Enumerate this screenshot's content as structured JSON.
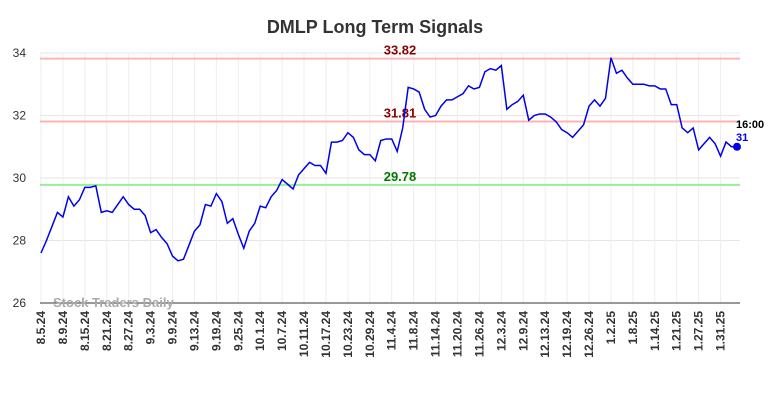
{
  "chart_data": {
    "type": "line",
    "title": "DMLP Long Term Signals",
    "categories": [
      "8.5.24",
      null,
      null,
      null,
      "8.9.24",
      null,
      null,
      null,
      "8.15.24",
      null,
      null,
      null,
      "8.21.24",
      null,
      null,
      null,
      "8.27.24",
      null,
      null,
      null,
      "9.3.24",
      null,
      null,
      null,
      "9.9.24",
      null,
      null,
      null,
      "9.13.24",
      null,
      null,
      null,
      "9.19.24",
      null,
      null,
      null,
      "9.25.24",
      null,
      null,
      null,
      "10.1.24",
      null,
      null,
      null,
      "10.7.24",
      null,
      null,
      null,
      "10.11.24",
      null,
      null,
      null,
      "10.17.24",
      null,
      null,
      null,
      "10.23.24",
      null,
      null,
      null,
      "10.29.24",
      null,
      null,
      null,
      "11.4.24",
      null,
      null,
      null,
      "11.8.24",
      null,
      null,
      null,
      "11.14.24",
      null,
      null,
      null,
      "11.20.24",
      null,
      null,
      null,
      "11.26.24",
      null,
      null,
      null,
      "12.3.24",
      null,
      null,
      null,
      "12.9.24",
      null,
      null,
      null,
      "12.13.24",
      null,
      null,
      null,
      "12.19.24",
      null,
      null,
      null,
      "12.26.24",
      null,
      null,
      null,
      "1.2.25",
      null,
      null,
      null,
      "1.8.25",
      null,
      null,
      null,
      "1.14.25",
      null,
      null,
      null,
      "1.21.25",
      null,
      null,
      null,
      "1.27.25",
      null,
      null,
      null,
      "1.31.25",
      null,
      null,
      null
    ],
    "series": [
      {
        "name": "DMLP",
        "color": "#0000ee",
        "values": [
          27.6,
          28.0,
          28.45,
          28.9,
          28.75,
          29.4,
          29.1,
          29.3,
          29.7,
          29.7,
          29.75,
          28.9,
          28.95,
          28.9,
          29.15,
          29.4,
          29.15,
          29.0,
          29.0,
          28.8,
          28.25,
          28.35,
          28.1,
          27.9,
          27.5,
          27.35,
          27.4,
          27.85,
          28.3,
          28.5,
          29.15,
          29.1,
          29.5,
          29.25,
          28.55,
          28.7,
          28.2,
          27.75,
          28.3,
          28.55,
          29.1,
          29.05,
          29.4,
          29.6,
          29.95,
          29.8,
          29.65,
          30.1,
          30.3,
          30.5,
          30.4,
          30.4,
          30.15,
          31.15,
          31.15,
          31.2,
          31.45,
          31.3,
          30.9,
          30.75,
          30.75,
          30.55,
          31.2,
          31.25,
          31.25,
          30.85,
          31.6,
          32.9,
          32.85,
          32.75,
          32.2,
          31.95,
          32.0,
          32.3,
          32.5,
          32.5,
          32.6,
          32.7,
          32.95,
          32.85,
          32.9,
          33.4,
          33.5,
          33.45,
          33.6,
          32.2,
          32.35,
          32.45,
          32.65,
          31.85,
          32.0,
          32.05,
          32.05,
          31.95,
          31.8,
          31.55,
          31.45,
          31.3,
          31.5,
          31.7,
          32.3,
          32.5,
          32.3,
          32.55,
          33.85,
          33.35,
          33.45,
          33.2,
          33.0,
          33.0,
          33.0,
          32.95,
          32.95,
          32.85,
          32.85,
          32.35,
          32.35,
          31.6,
          31.45,
          31.6,
          30.9,
          31.1,
          31.3,
          31.1,
          30.7,
          31.15,
          31.0,
          31.0
        ]
      }
    ],
    "ylim": [
      26,
      34
    ],
    "yticks": [
      26,
      28,
      30,
      32,
      34
    ],
    "grid": true,
    "reference_lines": [
      {
        "value": 33.82,
        "label": "33.82",
        "color": "#ffb3b3",
        "label_color": "#8b0000"
      },
      {
        "value": 31.81,
        "label": "31.81",
        "color": "#ffb3b3",
        "label_color": "#8b0000"
      },
      {
        "value": 29.78,
        "label": "29.78",
        "color": "#99ee99",
        "label_color": "#007700"
      }
    ],
    "end_label": {
      "time": "16:00",
      "value": 31
    },
    "watermark": "Stock Traders Daily"
  }
}
